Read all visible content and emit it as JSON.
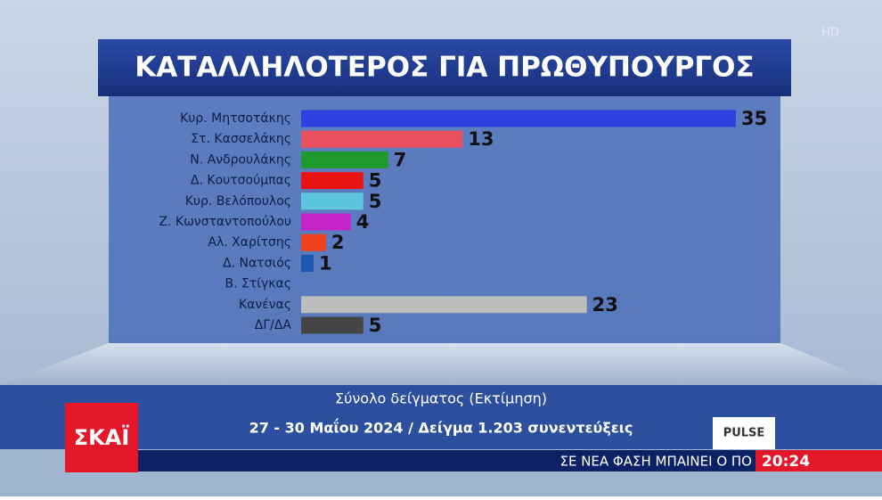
{
  "chart_data": {
    "type": "bar",
    "orientation": "horizontal",
    "title": "ΚΑΤΑΛΛΗΛΟΤΕΡΟΣ ΓΙΑ ΠΡΩΘΥΠΟΥΡΓΟΣ",
    "categories": [
      "Κυρ. Μητσοτάκης",
      "Στ. Κασσελάκης",
      "Ν. Ανδρουλάκης",
      "Δ. Κουτσούμπας",
      "Κυρ. Βελόπουλος",
      "Ζ. Κωνσταντοπούλου",
      "Αλ. Χαρίτσης",
      "Δ. Νατσιός",
      "Β. Στίγκας",
      "Κανένας",
      "ΔΓ/ΔΑ"
    ],
    "values": [
      35,
      13,
      7,
      5,
      5,
      4,
      2,
      1,
      null,
      23,
      5
    ],
    "colors": [
      "#2f3fe0",
      "#e8505e",
      "#1f9a2e",
      "#e81414",
      "#5ec6dc",
      "#c524c8",
      "#f0421a",
      "#1e56b0",
      "#888888",
      "#bdbdbd",
      "#454545"
    ],
    "subtitle": "Σύνολο δείγματος (Εκτίμηση)",
    "note": "27 - 30  Μαΐου 2024 / Δείγμα 1.203 συνεντεύξεις"
  },
  "screen": {
    "quality": "HD",
    "channel": "ΣΚΑΪ",
    "pollster": "PULSE",
    "ticker": "ΣΕ ΝΕΑ ΦΑΣΗ ΜΠΑΙΝΕΙ Ο ΠΟ",
    "time": "20:24"
  }
}
